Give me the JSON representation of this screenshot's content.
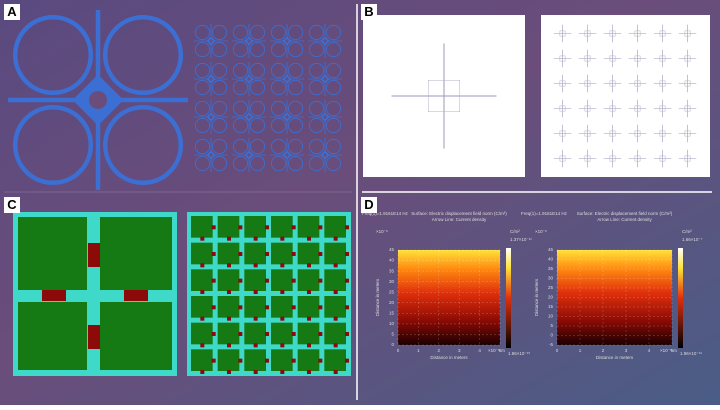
{
  "panels": [
    {
      "label": "A"
    },
    {
      "label": "B"
    },
    {
      "label": "C"
    },
    {
      "label": "D",
      "plots": [
        {
          "header": "Freq(1)=1.9161E14 Hz",
          "title": "Surface: Electric displacement field norm (C/m²)",
          "subtitle": "Arrow Line: Current density",
          "x_label": "Distance in meters",
          "y_label": "Distance in meters",
          "y_scale": "×10⁻⁶",
          "x_scale": "×10⁻⁶ m",
          "unit": "C/m²",
          "yticks": [
            45,
            40,
            35,
            30,
            25,
            20,
            15,
            10,
            5,
            0
          ],
          "xticks": [
            0,
            1,
            2,
            3,
            4,
            5
          ],
          "colorbar_max": "1.37×10⁻¹¹",
          "colorbar_min": "1.86×10⁻¹⁵"
        },
        {
          "header": "Freq(1)=1.9161E14 Hz",
          "title": "Surface: Electric displacement field norm (C/m²)",
          "subtitle": "Arrow Line: Current density",
          "x_label": "Distance in meters",
          "y_label": "Distance in meters",
          "y_scale": "×10⁻⁶",
          "x_scale": "×10⁻⁶ m",
          "unit": "C/m²",
          "yticks": [
            45,
            40,
            35,
            30,
            25,
            20,
            15,
            10,
            5,
            0,
            -5
          ],
          "xticks": [
            0,
            1,
            2,
            3,
            4,
            5
          ],
          "colorbar_max": "1.66×10⁻⁷",
          "colorbar_min": "1.96×10⁻¹⁹"
        }
      ]
    }
  ]
}
